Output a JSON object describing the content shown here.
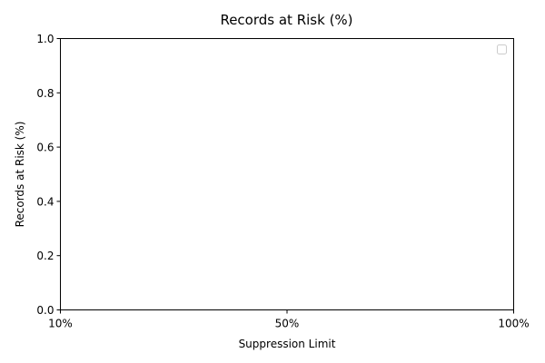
{
  "chart_data": {
    "type": "line",
    "title": "Records at Risk (%)",
    "xlabel": "Suppression Limit",
    "ylabel": "Records at Risk (%)",
    "x_ticks": [
      "10%",
      "50%",
      "100%"
    ],
    "y_ticks": [
      "0.0",
      "0.2",
      "0.4",
      "0.6",
      "0.8",
      "1.0"
    ],
    "ylim": [
      0,
      1
    ],
    "series": [],
    "legend": {
      "position": "top-right",
      "entries": []
    },
    "grid": false
  }
}
